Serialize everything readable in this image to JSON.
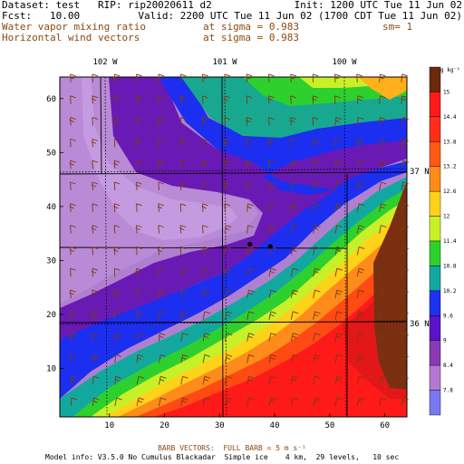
{
  "header": {
    "dataset": "Dataset: test   RIP: rip20020611 d2",
    "init": "Init: 1200 UTC Tue 11 Jun 02",
    "fcst": "Fcst:   10.00",
    "valid": "Valid: 2200 UTC Tue 11 Jun 02 (1700 CDT Tue 11 Jun 02)",
    "field1_name": "Water vapor mixing ratio",
    "field1_level": "at sigma = 0.983",
    "field1_smoothing": "sm= 1",
    "field2_name": "Horizontal wind vectors",
    "field2_level": "at sigma = 0.983"
  },
  "colors": {
    "title_text": "#000000",
    "field_text": "#8b4a12",
    "barb": "#7a3a10",
    "station_dot": "#000000"
  },
  "map": {
    "top_lon_labels": [
      "102 W",
      "101 W",
      "100 W"
    ],
    "right_lat_labels": [
      "37 N",
      "36 N"
    ],
    "x_ticks": [
      "10",
      "20",
      "30",
      "40",
      "50",
      "60"
    ],
    "y_ticks": [
      "10",
      "20",
      "30",
      "40",
      "50",
      "60"
    ],
    "x_range": [
      1,
      64
    ],
    "y_range": [
      1,
      64
    ],
    "stations": [
      {
        "x": 35.5,
        "y": 33.0
      },
      {
        "x": 39.2,
        "y": 32.6
      }
    ]
  },
  "colorbar": {
    "units": "g kg⁻¹",
    "labels": [
      "15",
      "14.4",
      "13.8",
      "13.2",
      "12.6",
      "12",
      "11.4",
      "10.8",
      "10.2",
      "9.6",
      "9",
      "8.4",
      "7.8"
    ],
    "colors": [
      "#6b2a0a",
      "#ff1a1a",
      "#ff2e1a",
      "#ff5a14",
      "#ff8c1a",
      "#ffd21a",
      "#c8f028",
      "#2ed02e",
      "#12a8a0",
      "#1c32f0",
      "#5a14c8",
      "#8a3ab4",
      "#b478d2",
      "#7878f0"
    ]
  },
  "footer": {
    "barb_note": "BARB VECTORS:  FULL BARB = 5 m s⁻¹",
    "model_info": "Model info: V3.5.0 No Cumulus Blackadar  Simple ice    4 km,  29 levels,   10 sec"
  }
}
